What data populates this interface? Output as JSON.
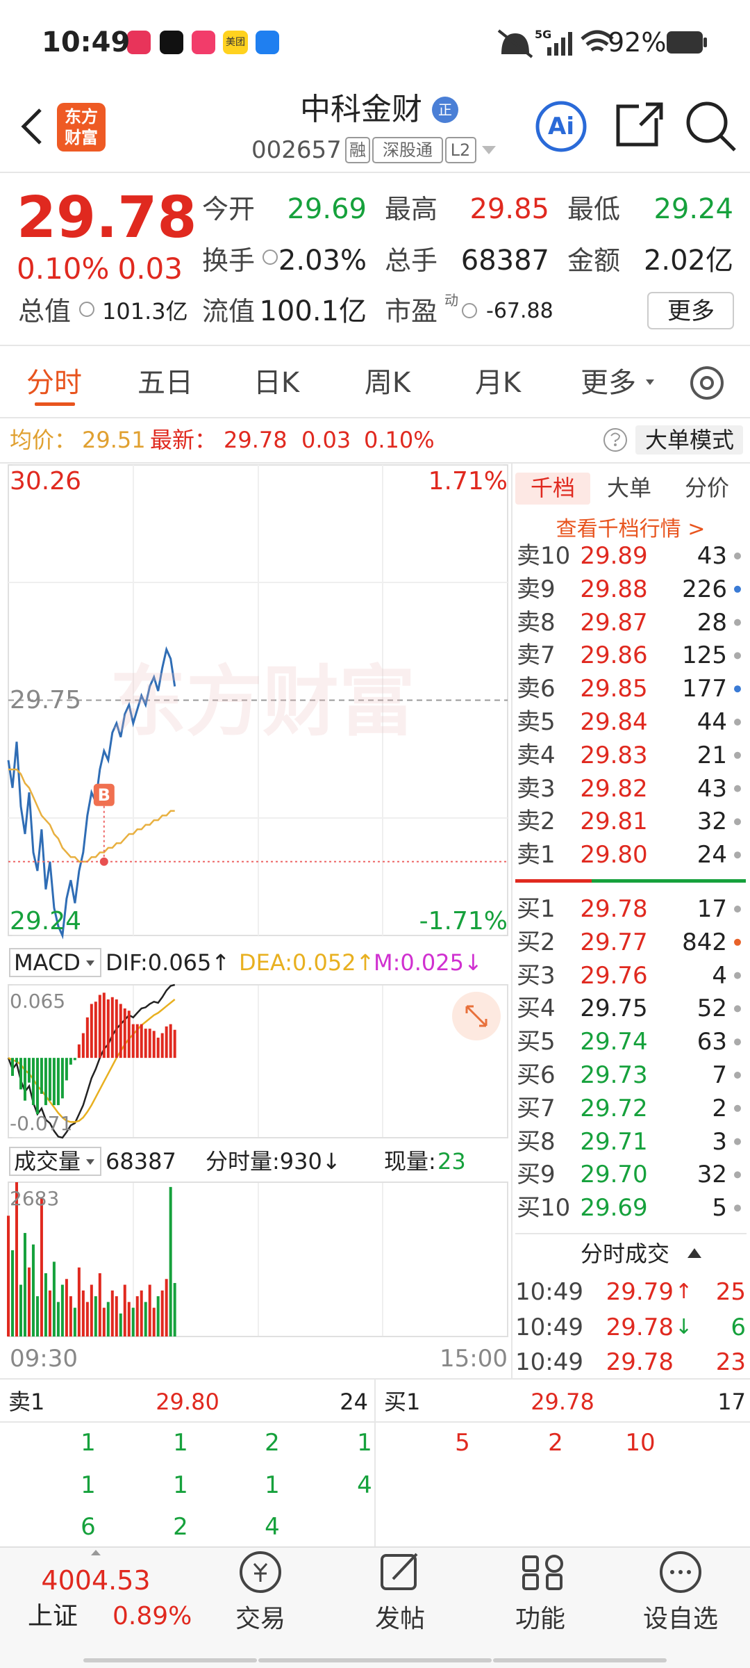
{
  "status_bar": {
    "time": "10:49",
    "app_label": "美团",
    "network": "5G",
    "battery": "92%"
  },
  "header": {
    "logo": [
      "东方",
      "财富"
    ],
    "name": "中科金财",
    "badge": "正",
    "code": "002657",
    "tags": [
      "融",
      "深股通",
      "L2"
    ],
    "ai": "Ai"
  },
  "quote": {
    "price": "29.78",
    "change_pct": "0.10%",
    "change": "0.03",
    "fields": [
      {
        "label": "今开",
        "value": "29.69"
      },
      {
        "label": "最高",
        "value": "29.85"
      },
      {
        "label": "最低",
        "value": "29.24"
      },
      {
        "label": "换手",
        "value": "2.03%"
      },
      {
        "label": "总手",
        "value": "68387"
      },
      {
        "label": "金额",
        "value": "2.02亿"
      },
      {
        "label": "总值",
        "value": "101.3亿"
      },
      {
        "label": "流值",
        "value": "100.1亿"
      },
      {
        "label": "市盈",
        "sup": "动",
        "value": "-67.88"
      }
    ],
    "more": "更多"
  },
  "tabs": [
    "分时",
    "五日",
    "日K",
    "周K",
    "月K",
    "更多"
  ],
  "summary": {
    "avg_label": "均价：",
    "avg": "29.51",
    "latest_label": "最新：",
    "latest": "29.78",
    "change": "0.03",
    "change_pct": "0.10%",
    "mode": "大单模式"
  },
  "watermark": "东方财富",
  "chart_data": [
    {
      "type": "line",
      "x": [
        0,
        2,
        4,
        6,
        8,
        10,
        12,
        14,
        16,
        18,
        20,
        22,
        24,
        26,
        28,
        30,
        32,
        34,
        36,
        38,
        40,
        42,
        44,
        46,
        48,
        50,
        52,
        54,
        56,
        58,
        60,
        62,
        64,
        66,
        68,
        70,
        72,
        74,
        76,
        78,
        80
      ],
      "xlim": [
        0,
        240
      ],
      "xticks": [
        {
          "value": 0,
          "label": "09:30"
        },
        {
          "value": 240,
          "label": "15:00"
        }
      ],
      "ylim": [
        29.24,
        30.26
      ],
      "yticks": [
        30.26,
        29.75,
        29.24
      ],
      "y2lim": [
        -1.71,
        1.71
      ],
      "y2ticks": [
        {
          "value": 1.71,
          "label": "1.71%"
        },
        {
          "value": -1.71,
          "label": "-1.71%"
        }
      ],
      "series": [
        {
          "color": "#2f6db5",
          "values": [
            29.62,
            29.56,
            29.66,
            29.52,
            29.46,
            29.55,
            29.42,
            29.38,
            29.47,
            29.34,
            29.4,
            29.3,
            29.26,
            29.24,
            29.32,
            29.36,
            29.31,
            29.38,
            29.42,
            29.5,
            29.55,
            29.53,
            29.6,
            29.64,
            29.62,
            29.68,
            29.7,
            29.67,
            29.72,
            29.74,
            29.7,
            29.73,
            29.76,
            29.74,
            29.78,
            29.8,
            29.77,
            29.82,
            29.86,
            29.84,
            29.78
          ]
        },
        {
          "color": "#e8b040",
          "values": [
            29.6,
            29.6,
            29.6,
            29.59,
            29.57,
            29.56,
            29.54,
            29.52,
            29.5,
            29.49,
            29.48,
            29.46,
            29.45,
            29.43,
            29.42,
            29.41,
            29.41,
            29.4,
            29.4,
            29.4,
            29.41,
            29.41,
            29.42,
            29.42,
            29.43,
            29.43,
            29.44,
            29.44,
            29.45,
            29.46,
            29.46,
            29.47,
            29.47,
            29.48,
            29.48,
            29.49,
            29.49,
            29.5,
            29.5,
            29.51,
            29.51
          ]
        }
      ],
      "marker": {
        "label": "B",
        "x": 46,
        "value": 29.4
      }
    },
    {
      "type": "line",
      "title": "MACD",
      "x": [
        0,
        2,
        4,
        6,
        8,
        10,
        12,
        14,
        16,
        18,
        20,
        22,
        24,
        26,
        28,
        30,
        32,
        34,
        36,
        38,
        40,
        42,
        44,
        46,
        48,
        50,
        52,
        54,
        56,
        58,
        60,
        62,
        64,
        66,
        68,
        70,
        72,
        74,
        76,
        78,
        80
      ],
      "xlim": [
        0,
        240
      ],
      "ylim": [
        -0.071,
        0.065
      ],
      "yticks": [
        0.065,
        -0.071
      ],
      "series": [
        {
          "name": "DIF:0.065↑",
          "color": "#222222",
          "values": [
            0,
            -0.01,
            -0.005,
            -0.02,
            -0.03,
            -0.025,
            -0.04,
            -0.05,
            -0.045,
            -0.055,
            -0.058,
            -0.065,
            -0.07,
            -0.071,
            -0.066,
            -0.06,
            -0.058,
            -0.05,
            -0.042,
            -0.03,
            -0.018,
            -0.01,
            0,
            0.008,
            0.012,
            0.02,
            0.026,
            0.03,
            0.034,
            0.038,
            0.036,
            0.04,
            0.044,
            0.045,
            0.048,
            0.05,
            0.049,
            0.054,
            0.06,
            0.064,
            0.065
          ]
        },
        {
          "name": "DEA:0.052↑",
          "color": "#e8b020",
          "values": [
            0,
            -0.002,
            -0.003,
            -0.006,
            -0.011,
            -0.014,
            -0.019,
            -0.025,
            -0.029,
            -0.034,
            -0.039,
            -0.044,
            -0.049,
            -0.053,
            -0.056,
            -0.057,
            -0.057,
            -0.056,
            -0.053,
            -0.048,
            -0.042,
            -0.035,
            -0.028,
            -0.021,
            -0.014,
            -0.007,
            0,
            0.006,
            0.012,
            0.017,
            0.021,
            0.025,
            0.029,
            0.032,
            0.035,
            0.038,
            0.04,
            0.043,
            0.046,
            0.049,
            0.052
          ]
        },
        {
          "name": "M:0.025↓",
          "color": "#d030d0",
          "type": "bar",
          "values": [
            0,
            -0.016,
            -0.004,
            -0.028,
            -0.038,
            -0.022,
            -0.042,
            -0.05,
            -0.032,
            -0.042,
            -0.038,
            -0.042,
            -0.042,
            -0.036,
            -0.02,
            -0.006,
            -0.002,
            0.012,
            0.022,
            0.036,
            0.048,
            0.05,
            0.056,
            0.058,
            0.052,
            0.054,
            0.052,
            0.048,
            0.044,
            0.042,
            0.03,
            0.03,
            0.03,
            0.026,
            0.026,
            0.024,
            0.018,
            0.022,
            0.028,
            0.03,
            0.025
          ]
        }
      ]
    },
    {
      "type": "bar",
      "title": "成交量",
      "labels": [
        "68387",
        "分时量:930↓",
        "现量:",
        "23"
      ],
      "x": [
        0,
        2,
        4,
        6,
        8,
        10,
        12,
        14,
        16,
        18,
        20,
        22,
        24,
        26,
        28,
        30,
        32,
        34,
        36,
        38,
        40,
        42,
        44,
        46,
        48,
        50,
        52,
        54,
        56,
        58,
        60,
        62,
        64,
        66,
        68,
        70,
        72,
        74,
        76,
        78,
        80
      ],
      "xlim": [
        0,
        240
      ],
      "ylim": [
        0,
        2683
      ],
      "yticks": [
        2683
      ],
      "values": [
        2100,
        1500,
        2683,
        900,
        1800,
        1200,
        1600,
        700,
        2400,
        1100,
        800,
        1300,
        600,
        900,
        1000,
        700,
        500,
        1200,
        800,
        600,
        900,
        700,
        1100,
        500,
        600,
        800,
        700,
        400,
        900,
        600,
        500,
        700,
        800,
        600,
        900,
        500,
        700,
        800,
        1000,
        2600,
        930
      ]
    }
  ],
  "order_panel": {
    "tabs": [
      "千档",
      "大单",
      "分价"
    ],
    "link": "查看千档行情 >",
    "asks": [
      {
        "label": "卖10",
        "price": "29.89",
        "volume": "43"
      },
      {
        "label": "卖9",
        "price": "29.88",
        "volume": "226",
        "dot": "#3a7bd5"
      },
      {
        "label": "卖8",
        "price": "29.87",
        "volume": "28"
      },
      {
        "label": "卖7",
        "price": "29.86",
        "volume": "125"
      },
      {
        "label": "卖6",
        "price": "29.85",
        "volume": "177",
        "dot": "#3a7bd5"
      },
      {
        "label": "卖5",
        "price": "29.84",
        "volume": "44"
      },
      {
        "label": "卖4",
        "price": "29.83",
        "volume": "21"
      },
      {
        "label": "卖3",
        "price": "29.82",
        "volume": "43"
      },
      {
        "label": "卖2",
        "price": "29.81",
        "volume": "32"
      },
      {
        "label": "卖1",
        "price": "29.80",
        "volume": "24"
      }
    ],
    "bids": [
      {
        "label": "买1",
        "price": "29.78",
        "volume": "17"
      },
      {
        "label": "买2",
        "price": "29.77",
        "volume": "842",
        "dot": "#e8622a"
      },
      {
        "label": "买3",
        "price": "29.76",
        "volume": "4"
      },
      {
        "label": "买4",
        "price": "29.75",
        "volume": "52"
      },
      {
        "label": "买5",
        "price": "29.74",
        "volume": "63"
      },
      {
        "label": "买6",
        "price": "29.73",
        "volume": "7"
      },
      {
        "label": "买7",
        "price": "29.72",
        "volume": "2"
      },
      {
        "label": "买8",
        "price": "29.71",
        "volume": "3"
      },
      {
        "label": "买9",
        "price": "29.70",
        "volume": "32"
      },
      {
        "label": "买10",
        "price": "29.69",
        "volume": "5"
      }
    ],
    "trades_title": "分时成交",
    "trades": [
      {
        "time": "10:49",
        "price": "29.79",
        "dir": "↑",
        "volume": "25"
      },
      {
        "time": "10:49",
        "price": "29.78",
        "dir": "↓",
        "volume": "6"
      },
      {
        "time": "10:49",
        "price": "29.78",
        "volume": "23"
      }
    ]
  },
  "queue": {
    "ask": {
      "label": "卖1",
      "price": "29.80",
      "volume": "24",
      "orders": [
        "1",
        "1",
        "2",
        "1",
        "1",
        "1",
        "1",
        "4",
        "6",
        "2",
        "4"
      ]
    },
    "bid": {
      "label": "买1",
      "price": "29.78",
      "volume": "17",
      "orders": [
        "5",
        "2",
        "10"
      ]
    }
  },
  "footer": {
    "index_value": "4004.53",
    "index_name": "上证",
    "index_change": "0.89%",
    "nav": [
      "交易",
      "发帖",
      "功能",
      "设自选"
    ]
  }
}
